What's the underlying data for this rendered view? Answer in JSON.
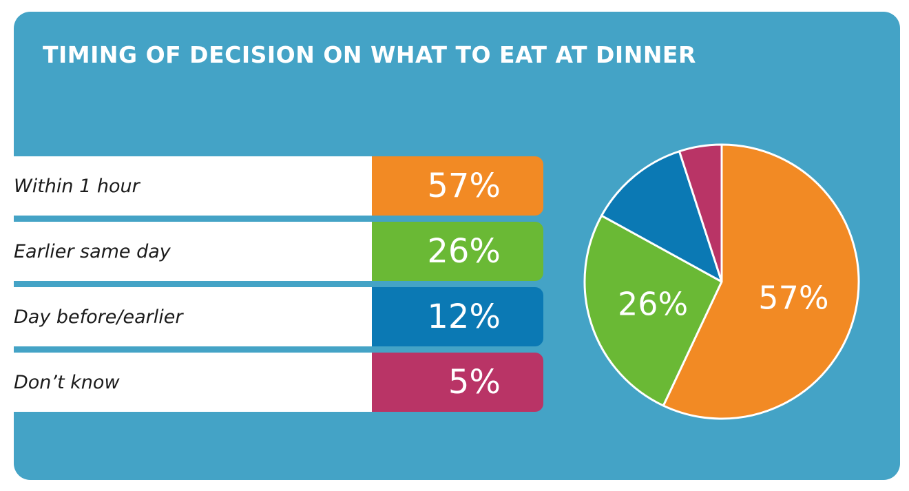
{
  "chart_data": {
    "type": "pie",
    "title": "TIMING OF DECISION ON WHAT TO EAT AT DINNER",
    "categories": [
      "Within 1 hour",
      "Earlier same day",
      "Day before/earlier",
      "Don’t know"
    ],
    "values": [
      57,
      26,
      12,
      5
    ],
    "value_labels": [
      "57%",
      "26%",
      "12%",
      "5%"
    ],
    "colors": [
      "#f28a24",
      "#6ab935",
      "#0b79b4",
      "#b93466"
    ],
    "pie_labels": [
      "57%",
      "26%",
      "",
      ""
    ],
    "legend": "left"
  },
  "colors": {
    "background": "#44a3c6",
    "label_bar": "#ffffff",
    "slice_border": "#ffffff"
  }
}
